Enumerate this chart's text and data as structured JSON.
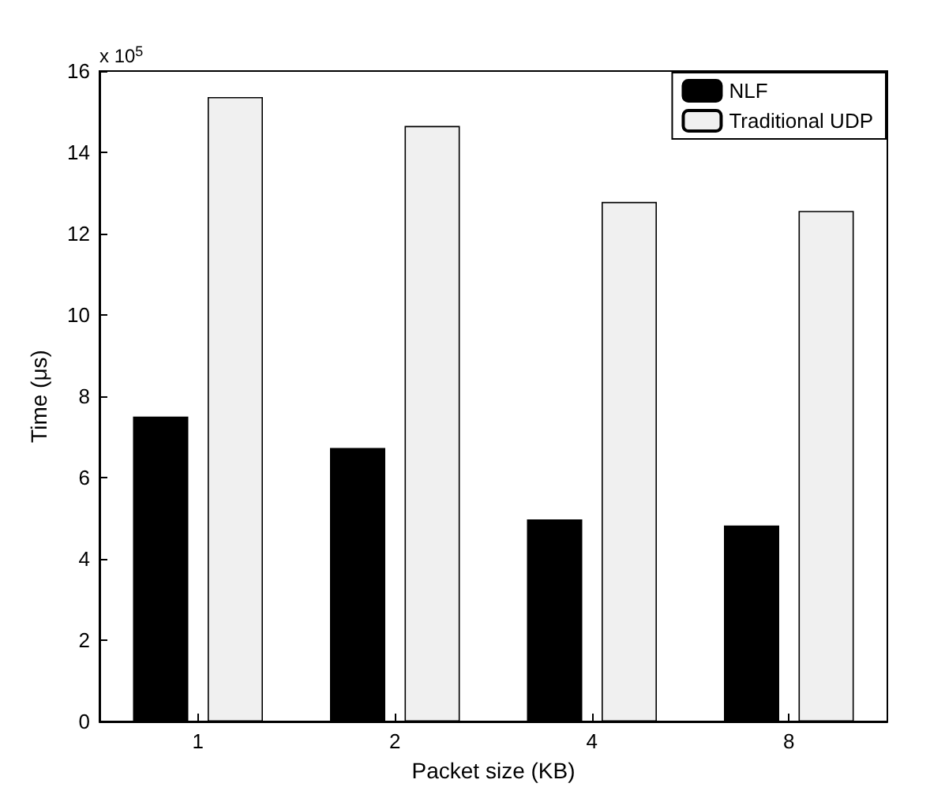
{
  "chart_data": {
    "type": "bar",
    "xlabel": "Packet size (KB)",
    "ylabel": "Time (μs)",
    "categories": [
      "1",
      "2",
      "4",
      "8"
    ],
    "series": [
      {
        "name": "NLF",
        "color": "#000000",
        "values": [
          7.5,
          6.73,
          4.97,
          4.82
        ]
      },
      {
        "name": "Traditional UDP",
        "color": "#f0f0f0",
        "values": [
          15.36,
          14.65,
          12.78,
          12.56
        ]
      }
    ],
    "ylim": [
      0,
      16
    ],
    "yticks": [
      0,
      2,
      4,
      6,
      8,
      10,
      12,
      14,
      16
    ],
    "grid": false,
    "legend": "top right",
    "annotations": [
      "x 10$^{5}$"
    ]
  }
}
